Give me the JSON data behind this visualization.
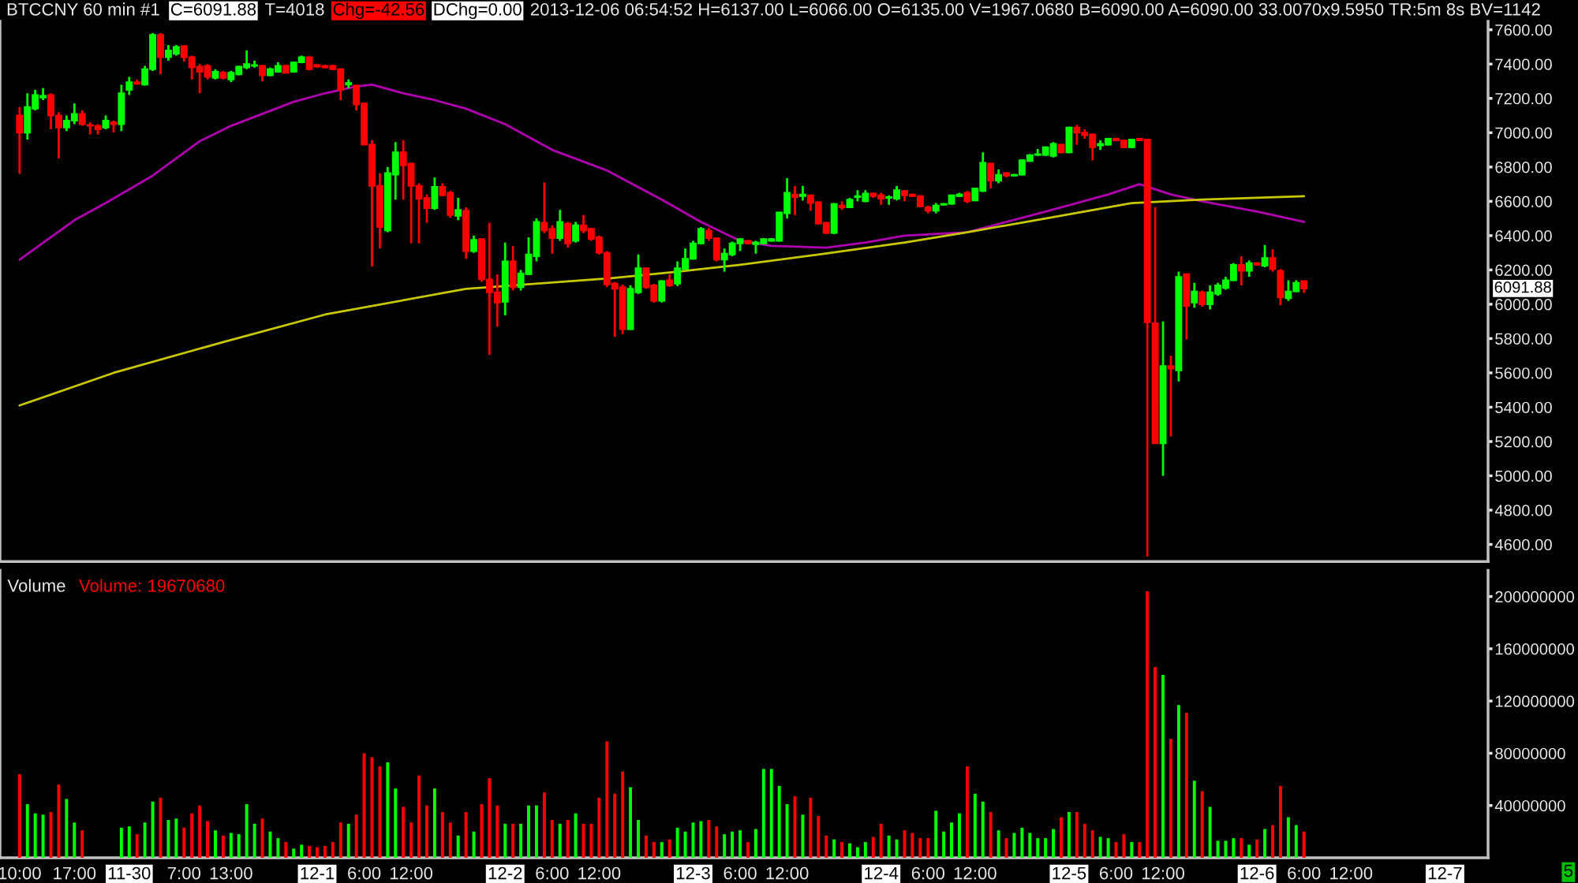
{
  "chart_data": [
    {
      "type": "candlestick",
      "title": "BTCCNY 60 min #1",
      "annotations": [
        "C=6091.88",
        "T=4018",
        "Chg=-42.56",
        "DChg=0.00",
        "2013-12-06 06:54:52 H=6137.00 L=6066.00 O=6135.00 V=1967.0680 B=6090.00 A=6090.00 33.0070x9.5950 TR:5m 8s BV=1142",
        "6091.88"
      ],
      "x": [
        "2013-11-29T10:00",
        "2013-11-29T11:00",
        "2013-11-29T12:00",
        "2013-11-29T13:00",
        "2013-11-29T14:00",
        "2013-11-29T15:00",
        "2013-11-29T16:00",
        "2013-11-29T17:00",
        "2013-11-29T18:00",
        "2013-11-29T19:00",
        "2013-11-29T20:00",
        "2013-11-29T21:00",
        "2013-11-29T22:00",
        "2013-11-29T23:00",
        "2013-11-30T00:00",
        "2013-11-30T01:00",
        "2013-11-30T02:00",
        "2013-11-30T03:00",
        "2013-11-30T04:00",
        "2013-11-30T05:00",
        "2013-11-30T06:00",
        "2013-11-30T07:00",
        "2013-11-30T08:00",
        "2013-11-30T09:00",
        "2013-11-30T10:00",
        "2013-11-30T11:00",
        "2013-11-30T12:00",
        "2013-11-30T13:00",
        "2013-11-30T14:00",
        "2013-11-30T15:00",
        "2013-11-30T16:00",
        "2013-11-30T17:00",
        "2013-11-30T18:00",
        "2013-11-30T19:00",
        "2013-11-30T20:00",
        "2013-11-30T21:00",
        "2013-11-30T22:00",
        "2013-11-30T23:00",
        "2013-12-01T00:00",
        "2013-12-01T01:00",
        "2013-12-01T02:00",
        "2013-12-01T03:00",
        "2013-12-01T04:00",
        "2013-12-01T05:00",
        "2013-12-01T06:00",
        "2013-12-01T07:00",
        "2013-12-01T08:00",
        "2013-12-01T09:00",
        "2013-12-01T10:00",
        "2013-12-01T11:00",
        "2013-12-01T12:00",
        "2013-12-01T13:00",
        "2013-12-01T14:00",
        "2013-12-01T15:00",
        "2013-12-01T16:00",
        "2013-12-01T17:00",
        "2013-12-01T18:00",
        "2013-12-01T19:00",
        "2013-12-01T20:00",
        "2013-12-01T21:00",
        "2013-12-01T22:00",
        "2013-12-01T23:00",
        "2013-12-02T00:00",
        "2013-12-02T01:00",
        "2013-12-02T02:00",
        "2013-12-02T03:00",
        "2013-12-02T04:00",
        "2013-12-02T05:00",
        "2013-12-02T06:00",
        "2013-12-02T07:00",
        "2013-12-02T08:00",
        "2013-12-02T09:00",
        "2013-12-02T10:00",
        "2013-12-02T11:00",
        "2013-12-02T12:00",
        "2013-12-02T13:00",
        "2013-12-02T14:00",
        "2013-12-02T15:00",
        "2013-12-02T16:00",
        "2013-12-02T17:00",
        "2013-12-02T18:00",
        "2013-12-02T19:00",
        "2013-12-02T20:00",
        "2013-12-02T21:00",
        "2013-12-02T22:00",
        "2013-12-02T23:00",
        "2013-12-03T00:00",
        "2013-12-03T01:00",
        "2013-12-03T02:00",
        "2013-12-03T03:00",
        "2013-12-03T04:00",
        "2013-12-03T05:00",
        "2013-12-03T06:00",
        "2013-12-03T07:00",
        "2013-12-03T08:00",
        "2013-12-03T09:00",
        "2013-12-03T10:00",
        "2013-12-03T11:00",
        "2013-12-03T12:00",
        "2013-12-03T13:00",
        "2013-12-03T14:00",
        "2013-12-03T15:00",
        "2013-12-03T16:00",
        "2013-12-03T17:00",
        "2013-12-03T18:00",
        "2013-12-03T19:00",
        "2013-12-03T20:00",
        "2013-12-03T21:00",
        "2013-12-03T22:00",
        "2013-12-03T23:00",
        "2013-12-04T00:00",
        "2013-12-04T01:00",
        "2013-12-04T02:00",
        "2013-12-04T03:00",
        "2013-12-04T04:00",
        "2013-12-04T05:00",
        "2013-12-04T06:00",
        "2013-12-04T07:00",
        "2013-12-04T08:00",
        "2013-12-04T09:00",
        "2013-12-04T10:00",
        "2013-12-04T11:00",
        "2013-12-04T12:00",
        "2013-12-04T13:00",
        "2013-12-04T14:00",
        "2013-12-04T15:00",
        "2013-12-04T16:00",
        "2013-12-04T17:00",
        "2013-12-04T18:00",
        "2013-12-04T19:00",
        "2013-12-04T20:00",
        "2013-12-04T21:00",
        "2013-12-04T22:00",
        "2013-12-04T23:00",
        "2013-12-05T00:00",
        "2013-12-05T01:00",
        "2013-12-05T02:00",
        "2013-12-05T03:00",
        "2013-12-05T04:00",
        "2013-12-05T05:00",
        "2013-12-05T06:00",
        "2013-12-05T07:00",
        "2013-12-05T08:00",
        "2013-12-05T09:00",
        "2013-12-05T10:00",
        "2013-12-05T11:00",
        "2013-12-05T12:00",
        "2013-12-05T13:00",
        "2013-12-05T14:00",
        "2013-12-05T15:00",
        "2013-12-05T16:00",
        "2013-12-05T17:00",
        "2013-12-05T18:00",
        "2013-12-05T19:00",
        "2013-12-05T20:00",
        "2013-12-05T21:00",
        "2013-12-05T22:00",
        "2013-12-05T23:00",
        "2013-12-06T00:00",
        "2013-12-06T01:00",
        "2013-12-06T02:00",
        "2013-12-06T03:00",
        "2013-12-06T04:00",
        "2013-12-06T05:00",
        "2013-12-06T06:00"
      ],
      "ohlc": [
        [
          7100,
          7150,
          6760,
          7000
        ],
        [
          7000,
          7230,
          6960,
          7150
        ],
        [
          7140,
          7250,
          7130,
          7220
        ],
        [
          7205,
          7260,
          7190,
          7215
        ],
        [
          7220,
          7230,
          7020,
          7100
        ],
        [
          7100,
          7120,
          6850,
          7030
        ],
        [
          7030,
          7100,
          7010,
          7070
        ],
        [
          7070,
          7170,
          7050,
          7110
        ],
        [
          7110,
          7130,
          7040,
          7050
        ],
        [
          7045,
          7060,
          6990,
          7040
        ],
        [
          7040,
          7050,
          6990,
          7020
        ],
        [
          7030,
          7100,
          7020,
          7070
        ],
        [
          7060,
          7070,
          7000,
          7050
        ],
        [
          7050,
          7280,
          7010,
          7230
        ],
        [
          7250,
          7325,
          7220,
          7295
        ],
        [
          7295,
          7310,
          7280,
          7285
        ],
        [
          7280,
          7390,
          7275,
          7370
        ],
        [
          7370,
          7580,
          7360,
          7570
        ],
        [
          7570,
          7580,
          7340,
          7440
        ],
        [
          7440,
          7510,
          7420,
          7480
        ],
        [
          7460,
          7510,
          7450,
          7500
        ],
        [
          7505,
          7510,
          7415,
          7440
        ],
        [
          7440,
          7450,
          7310,
          7380
        ],
        [
          7385,
          7400,
          7230,
          7355
        ],
        [
          7390,
          7400,
          7310,
          7325
        ],
        [
          7320,
          7370,
          7310,
          7355
        ],
        [
          7350,
          7360,
          7310,
          7320
        ],
        [
          7310,
          7360,
          7295,
          7350
        ],
        [
          7340,
          7390,
          7335,
          7385
        ],
        [
          7380,
          7480,
          7370,
          7400
        ],
        [
          7390,
          7420,
          7380,
          7395
        ],
        [
          7390,
          7395,
          7300,
          7335
        ],
        [
          7335,
          7380,
          7330,
          7370
        ],
        [
          7355,
          7410,
          7350,
          7390
        ],
        [
          7390,
          7395,
          7345,
          7350
        ],
        [
          7355,
          7415,
          7350,
          7410
        ],
        [
          7410,
          7450,
          7405,
          7440
        ],
        [
          7440,
          7445,
          7365,
          7370
        ],
        [
          7395,
          7400,
          7380,
          7385
        ],
        [
          7390,
          7395,
          7375,
          7380
        ],
        [
          7390,
          7395,
          7365,
          7370
        ],
        [
          7370,
          7375,
          7190,
          7250
        ],
        [
          7280,
          7310,
          7260,
          7290
        ],
        [
          7275,
          7280,
          7130,
          7165
        ],
        [
          7170,
          7175,
          6930,
          6930
        ],
        [
          6930,
          6955,
          6220,
          6690
        ],
        [
          6690,
          6765,
          6325,
          6450
        ],
        [
          6430,
          6800,
          6420,
          6765
        ],
        [
          6755,
          6945,
          6610,
          6885
        ],
        [
          6885,
          6955,
          6610,
          6810
        ],
        [
          6820,
          6825,
          6355,
          6690
        ],
        [
          6690,
          6705,
          6355,
          6615
        ],
        [
          6620,
          6640,
          6475,
          6560
        ],
        [
          6560,
          6740,
          6550,
          6685
        ],
        [
          6685,
          6705,
          6630,
          6635
        ],
        [
          6650,
          6660,
          6505,
          6520
        ],
        [
          6515,
          6620,
          6490,
          6550
        ],
        [
          6545,
          6565,
          6265,
          6310
        ],
        [
          6310,
          6400,
          6300,
          6375
        ],
        [
          6380,
          6385,
          6130,
          6145
        ],
        [
          6145,
          6475,
          5705,
          6070
        ],
        [
          6070,
          6175,
          5870,
          6010
        ],
        [
          6015,
          6360,
          5935,
          6250
        ],
        [
          6250,
          6340,
          6080,
          6100
        ],
        [
          6100,
          6200,
          6080,
          6180
        ],
        [
          6175,
          6390,
          6170,
          6290
        ],
        [
          6280,
          6500,
          6250,
          6480
        ],
        [
          6475,
          6710,
          6415,
          6430
        ],
        [
          6440,
          6460,
          6295,
          6385
        ],
        [
          6385,
          6550,
          6370,
          6480
        ],
        [
          6470,
          6480,
          6330,
          6355
        ],
        [
          6370,
          6480,
          6360,
          6460
        ],
        [
          6460,
          6520,
          6415,
          6430
        ],
        [
          6440,
          6445,
          6370,
          6380
        ],
        [
          6390,
          6400,
          6290,
          6300
        ],
        [
          6300,
          6310,
          6100,
          6115
        ],
        [
          6120,
          6130,
          5810,
          6090
        ],
        [
          6100,
          6115,
          5825,
          5855
        ],
        [
          5855,
          6110,
          5850,
          6090
        ],
        [
          6070,
          6290,
          6060,
          6210
        ],
        [
          6210,
          6215,
          6090,
          6100
        ],
        [
          6110,
          6120,
          6010,
          6020
        ],
        [
          6020,
          6140,
          6010,
          6135
        ],
        [
          6140,
          6175,
          6100,
          6110
        ],
        [
          6120,
          6250,
          6105,
          6210
        ],
        [
          6205,
          6325,
          6200,
          6265
        ],
        [
          6265,
          6370,
          6260,
          6355
        ],
        [
          6355,
          6450,
          6350,
          6440
        ],
        [
          6430,
          6445,
          6370,
          6385
        ],
        [
          6385,
          6390,
          6250,
          6260
        ],
        [
          6260,
          6325,
          6190,
          6295
        ],
        [
          6290,
          6365,
          6280,
          6355
        ],
        [
          6355,
          6385,
          6310,
          6380
        ],
        [
          6370,
          6375,
          6350,
          6355
        ],
        [
          6350,
          6370,
          6295,
          6360
        ],
        [
          6355,
          6385,
          6350,
          6380
        ],
        [
          6370,
          6385,
          6365,
          6380
        ],
        [
          6370,
          6540,
          6365,
          6535
        ],
        [
          6530,
          6735,
          6500,
          6650
        ],
        [
          6640,
          6690,
          6520,
          6625
        ],
        [
          6630,
          6690,
          6605,
          6640
        ],
        [
          6635,
          6640,
          6545,
          6590
        ],
        [
          6595,
          6600,
          6465,
          6470
        ],
        [
          6475,
          6480,
          6410,
          6415
        ],
        [
          6415,
          6590,
          6410,
          6585
        ],
        [
          6575,
          6600,
          6550,
          6565
        ],
        [
          6565,
          6620,
          6560,
          6610
        ],
        [
          6625,
          6665,
          6600,
          6630
        ],
        [
          6600,
          6665,
          6595,
          6645
        ],
        [
          6645,
          6650,
          6620,
          6630
        ],
        [
          6635,
          6650,
          6580,
          6615
        ],
        [
          6620,
          6635,
          6580,
          6625
        ],
        [
          6615,
          6690,
          6605,
          6665
        ],
        [
          6660,
          6665,
          6600,
          6635
        ],
        [
          6640,
          6645,
          6625,
          6630
        ],
        [
          6630,
          6635,
          6565,
          6570
        ],
        [
          6565,
          6575,
          6530,
          6545
        ],
        [
          6545,
          6590,
          6530,
          6575
        ],
        [
          6580,
          6590,
          6575,
          6585
        ],
        [
          6585,
          6640,
          6580,
          6635
        ],
        [
          6630,
          6650,
          6625,
          6640
        ],
        [
          6650,
          6660,
          6590,
          6600
        ],
        [
          6605,
          6680,
          6600,
          6675
        ],
        [
          6660,
          6885,
          6655,
          6825
        ],
        [
          6820,
          6825,
          6675,
          6720
        ],
        [
          6720,
          6785,
          6705,
          6755
        ],
        [
          6765,
          6770,
          6740,
          6750
        ],
        [
          6750,
          6760,
          6745,
          6755
        ],
        [
          6755,
          6845,
          6750,
          6840
        ],
        [
          6835,
          6875,
          6830,
          6870
        ],
        [
          6870,
          6905,
          6865,
          6875
        ],
        [
          6870,
          6920,
          6865,
          6915
        ],
        [
          6865,
          6945,
          6855,
          6935
        ],
        [
          6930,
          6935,
          6880,
          6885
        ],
        [
          6885,
          7035,
          6880,
          7030
        ],
        [
          7030,
          7045,
          6930,
          7000
        ],
        [
          7000,
          7020,
          6965,
          6985
        ],
        [
          6990,
          6995,
          6840,
          6915
        ],
        [
          6925,
          6955,
          6900,
          6935
        ],
        [
          6930,
          6970,
          6925,
          6965
        ],
        [
          6965,
          6970,
          6950,
          6955
        ],
        [
          6955,
          6960,
          6910,
          6915
        ],
        [
          6915,
          6965,
          6910,
          6960
        ],
        [
          6965,
          6970,
          6950,
          6955
        ],
        [
          6960,
          6965,
          4530,
          5895
        ],
        [
          5890,
          6565,
          5190,
          5190
        ],
        [
          5190,
          5900,
          5000,
          5640
        ],
        [
          5640,
          5700,
          5230,
          5625
        ],
        [
          5615,
          6190,
          5550,
          6160
        ],
        [
          6175,
          6175,
          5795,
          5990
        ],
        [
          6010,
          6125,
          5980,
          6075
        ],
        [
          6070,
          6080,
          5985,
          6000
        ],
        [
          6000,
          6110,
          5970,
          6070
        ],
        [
          6060,
          6125,
          6050,
          6110
        ],
        [
          6095,
          6160,
          6085,
          6140
        ],
        [
          6140,
          6240,
          6135,
          6230
        ],
        [
          6230,
          6280,
          6110,
          6195
        ],
        [
          6195,
          6255,
          6160,
          6240
        ],
        [
          6240,
          6245,
          6225,
          6230
        ],
        [
          6225,
          6345,
          6215,
          6270
        ],
        [
          6270,
          6320,
          6190,
          6205
        ],
        [
          6195,
          6205,
          5995,
          6040
        ],
        [
          6035,
          6140,
          6020,
          6075
        ],
        [
          6075,
          6140,
          6070,
          6125
        ],
        [
          6135,
          6137,
          6066,
          6091.88
        ]
      ],
      "colors": [
        "#ff0000",
        "#00ff00",
        "#00ff00",
        "#00ff00",
        "#ff0000",
        "#ff0000",
        "#00ff00",
        "#00ff00",
        "#ff0000",
        "#ff0000",
        "#ff0000",
        "#00ff00",
        "#ff0000",
        "#00ff00",
        "#00ff00",
        "#ff0000",
        "#00ff00",
        "#00ff00",
        "#ff0000",
        "#00ff00",
        "#00ff00",
        "#ff0000",
        "#ff0000",
        "#ff0000",
        "#ff0000",
        "#00ff00",
        "#ff0000",
        "#00ff00",
        "#00ff00",
        "#00ff00",
        "#00ff00",
        "#ff0000",
        "#00ff00",
        "#00ff00",
        "#ff0000",
        "#00ff00",
        "#00ff00",
        "#ff0000",
        "#ff0000",
        "#ff0000",
        "#ff0000",
        "#ff0000",
        "#00ff00",
        "#ff0000",
        "#ff0000",
        "#ff0000",
        "#ff0000",
        "#00ff00",
        "#00ff00",
        "#ff0000",
        "#ff0000",
        "#ff0000",
        "#ff0000",
        "#00ff00",
        "#ff0000",
        "#ff0000",
        "#00ff00",
        "#ff0000",
        "#00ff00",
        "#ff0000",
        "#ff0000",
        "#ff0000",
        "#00ff00",
        "#ff0000",
        "#00ff00",
        "#00ff00",
        "#00ff00",
        "#ff0000",
        "#ff0000",
        "#00ff00",
        "#ff0000",
        "#00ff00",
        "#ff0000",
        "#ff0000",
        "#ff0000",
        "#ff0000",
        "#ff0000",
        "#ff0000",
        "#00ff00",
        "#00ff00",
        "#ff0000",
        "#ff0000",
        "#00ff00",
        "#ff0000",
        "#00ff00",
        "#00ff00",
        "#00ff00",
        "#00ff00",
        "#ff0000",
        "#ff0000",
        "#00ff00",
        "#00ff00",
        "#00ff00",
        "#ff0000",
        "#00ff00",
        "#00ff00",
        "#00ff00",
        "#00ff00",
        "#00ff00",
        "#ff0000",
        "#00ff00",
        "#ff0000",
        "#ff0000",
        "#ff0000",
        "#00ff00",
        "#ff0000",
        "#00ff00",
        "#00ff00",
        "#00ff00",
        "#ff0000",
        "#ff0000",
        "#00ff00",
        "#00ff00",
        "#ff0000",
        "#ff0000",
        "#ff0000",
        "#ff0000",
        "#00ff00",
        "#00ff00",
        "#00ff00",
        "#00ff00",
        "#ff0000",
        "#00ff00",
        "#00ff00",
        "#ff0000",
        "#00ff00",
        "#ff0000",
        "#00ff00",
        "#00ff00",
        "#00ff00",
        "#00ff00",
        "#00ff00",
        "#00ff00",
        "#ff0000",
        "#00ff00",
        "#ff0000",
        "#ff0000",
        "#ff0000",
        "#00ff00",
        "#00ff00",
        "#ff0000",
        "#ff0000",
        "#00ff00",
        "#ff0000",
        "#ff0000",
        "#ff0000",
        "#00ff00",
        "#ff0000",
        "#00ff00",
        "#ff0000",
        "#00ff00",
        "#ff0000",
        "#00ff00",
        "#00ff00",
        "#00ff00",
        "#00ff00",
        "#ff0000",
        "#00ff00",
        "#ff0000",
        "#00ff00",
        "#ff0000",
        "#ff0000",
        "#00ff00",
        "#00ff00",
        "#ff0000"
      ],
      "series": [
        {
          "type": "line",
          "color": "#b000b0",
          "x": [
            "2013-11-29T10:00",
            "2013-11-29T17:00",
            "2013-11-29T21:00",
            "2013-11-30T03:00",
            "2013-11-30T09:00",
            "2013-11-30T13:00",
            "2013-11-30T17:00",
            "2013-11-30T21:00",
            "2013-12-01T01:00",
            "2013-12-01T05:00",
            "2013-12-01T07:00",
            "2013-12-01T11:00",
            "2013-12-01T15:00",
            "2013-12-01T19:00",
            "2013-12-02T00:00",
            "2013-12-02T06:00",
            "2013-12-02T13:00",
            "2013-12-02T20:00",
            "2013-12-03T01:00",
            "2013-12-03T06:00",
            "2013-12-03T10:00",
            "2013-12-03T17:00",
            "2013-12-03T22:00",
            "2013-12-04T03:00",
            "2013-12-04T11:00",
            "2013-12-04T21:00",
            "2013-12-05T05:00",
            "2013-12-05T09:00",
            "2013-12-05T13:00",
            "2013-12-05T17:00",
            "2013-12-06T00:00",
            "2013-12-06T06:00"
          ],
          "values": [
            6260,
            6490,
            6590,
            6750,
            6950,
            7040,
            7110,
            7180,
            7230,
            7270,
            7280,
            7230,
            7190,
            7140,
            7050,
            6900,
            6780,
            6610,
            6480,
            6370,
            6340,
            6330,
            6360,
            6400,
            6420,
            6540,
            6640,
            6700,
            6640,
            6600,
            6540,
            6480
          ]
        },
        {
          "type": "line",
          "color": "#c8c800",
          "x": [
            "2013-11-29T10:00",
            "2013-11-29T22:00",
            "2013-11-30T12:00",
            "2013-12-01T01:00",
            "2013-12-01T19:00",
            "2013-12-02T13:00",
            "2013-12-02T22:00",
            "2013-12-03T06:00",
            "2013-12-03T16:00",
            "2013-12-04T03:00",
            "2013-12-04T11:00",
            "2013-12-04T21:00",
            "2013-12-05T08:00",
            "2013-12-05T17:00",
            "2013-12-06T06:00"
          ],
          "values": [
            5410,
            5600,
            5780,
            5940,
            6090,
            6150,
            6190,
            6230,
            6290,
            6360,
            6420,
            6500,
            6590,
            6610,
            6630
          ]
        }
      ],
      "xlim": [
        "2013-11-29T07:30",
        "2013-12-07T05:30"
      ],
      "ylim": [
        4500,
        7650
      ],
      "yticks": [
        {
          "value": 4600,
          "label": "4600.00"
        },
        {
          "value": 4800,
          "label": "4800.00"
        },
        {
          "value": 5000,
          "label": "5000.00"
        },
        {
          "value": 5200,
          "label": "5200.00"
        },
        {
          "value": 5400,
          "label": "5400.00"
        },
        {
          "value": 5600,
          "label": "5600.00"
        },
        {
          "value": 5800,
          "label": "5800.00"
        },
        {
          "value": 6000,
          "label": "6000.00"
        },
        {
          "value": 6200,
          "label": "6200.00"
        },
        {
          "value": 6400,
          "label": "6400.00"
        },
        {
          "value": 6600,
          "label": "6600.00"
        },
        {
          "value": 6800,
          "label": "6800.00"
        },
        {
          "value": 7000,
          "label": "7000.00"
        },
        {
          "value": 7200,
          "label": "7200.00"
        },
        {
          "value": 7400,
          "label": "7400.00"
        },
        {
          "value": 7600,
          "label": "7600.00"
        }
      ],
      "tick_labels": "y"
    },
    {
      "type": "bar",
      "title": "Volume",
      "annotations": [
        "Volume: 19670680",
        "5"
      ],
      "x": [
        "2013-11-29T10:00",
        "2013-11-29T11:00",
        "2013-11-29T12:00",
        "2013-11-29T13:00",
        "2013-11-29T14:00",
        "2013-11-29T15:00",
        "2013-11-29T16:00",
        "2013-11-29T17:00",
        "2013-11-29T18:00",
        "2013-11-29T19:00",
        "2013-11-29T20:00",
        "2013-11-29T21:00",
        "2013-11-29T22:00",
        "2013-11-29T23:00",
        "2013-11-30T00:00",
        "2013-11-30T01:00",
        "2013-11-30T02:00",
        "2013-11-30T03:00",
        "2013-11-30T04:00",
        "2013-11-30T05:00",
        "2013-11-30T06:00",
        "2013-11-30T07:00",
        "2013-11-30T08:00",
        "2013-11-30T09:00",
        "2013-11-30T10:00",
        "2013-11-30T11:00",
        "2013-11-30T12:00",
        "2013-11-30T13:00",
        "2013-11-30T14:00",
        "2013-11-30T15:00",
        "2013-11-30T16:00",
        "2013-11-30T17:00",
        "2013-11-30T18:00",
        "2013-11-30T19:00",
        "2013-11-30T20:00",
        "2013-11-30T21:00",
        "2013-11-30T22:00",
        "2013-11-30T23:00",
        "2013-12-01T00:00",
        "2013-12-01T01:00",
        "2013-12-01T02:00",
        "2013-12-01T03:00",
        "2013-12-01T04:00",
        "2013-12-01T05:00",
        "2013-12-01T06:00",
        "2013-12-01T07:00",
        "2013-12-01T08:00",
        "2013-12-01T09:00",
        "2013-12-01T10:00",
        "2013-12-01T11:00",
        "2013-12-01T12:00",
        "2013-12-01T13:00",
        "2013-12-01T14:00",
        "2013-12-01T15:00",
        "2013-12-01T16:00",
        "2013-12-01T17:00",
        "2013-12-01T18:00",
        "2013-12-01T19:00",
        "2013-12-01T20:00",
        "2013-12-01T21:00",
        "2013-12-01T22:00",
        "2013-12-01T23:00",
        "2013-12-02T00:00",
        "2013-12-02T01:00",
        "2013-12-02T02:00",
        "2013-12-02T03:00",
        "2013-12-02T04:00",
        "2013-12-02T05:00",
        "2013-12-02T06:00",
        "2013-12-02T07:00",
        "2013-12-02T08:00",
        "2013-12-02T09:00",
        "2013-12-02T10:00",
        "2013-12-02T11:00",
        "2013-12-02T12:00",
        "2013-12-02T13:00",
        "2013-12-02T14:00",
        "2013-12-02T15:00",
        "2013-12-02T16:00",
        "2013-12-02T17:00",
        "2013-12-02T18:00",
        "2013-12-02T19:00",
        "2013-12-02T20:00",
        "2013-12-02T21:00",
        "2013-12-02T22:00",
        "2013-12-02T23:00",
        "2013-12-03T00:00",
        "2013-12-03T01:00",
        "2013-12-03T02:00",
        "2013-12-03T03:00",
        "2013-12-03T04:00",
        "2013-12-03T05:00",
        "2013-12-03T06:00",
        "2013-12-03T07:00",
        "2013-12-03T08:00",
        "2013-12-03T09:00",
        "2013-12-03T10:00",
        "2013-12-03T11:00",
        "2013-12-03T12:00",
        "2013-12-03T13:00",
        "2013-12-03T14:00",
        "2013-12-03T15:00",
        "2013-12-03T16:00",
        "2013-12-03T17:00",
        "2013-12-03T18:00",
        "2013-12-03T19:00",
        "2013-12-03T20:00",
        "2013-12-03T21:00",
        "2013-12-03T22:00",
        "2013-12-03T23:00",
        "2013-12-04T00:00",
        "2013-12-04T01:00",
        "2013-12-04T02:00",
        "2013-12-04T03:00",
        "2013-12-04T04:00",
        "2013-12-04T05:00",
        "2013-12-04T06:00",
        "2013-12-04T07:00",
        "2013-12-04T08:00",
        "2013-12-04T09:00",
        "2013-12-04T10:00",
        "2013-12-04T11:00",
        "2013-12-04T12:00",
        "2013-12-04T13:00",
        "2013-12-04T14:00",
        "2013-12-04T15:00",
        "2013-12-04T16:00",
        "2013-12-04T17:00",
        "2013-12-04T18:00",
        "2013-12-04T19:00",
        "2013-12-04T20:00",
        "2013-12-04T21:00",
        "2013-12-04T22:00",
        "2013-12-04T23:00",
        "2013-12-05T00:00",
        "2013-12-05T01:00",
        "2013-12-05T02:00",
        "2013-12-05T03:00",
        "2013-12-05T04:00",
        "2013-12-05T05:00",
        "2013-12-05T06:00",
        "2013-12-05T07:00",
        "2013-12-05T08:00",
        "2013-12-05T09:00",
        "2013-12-05T10:00",
        "2013-12-05T11:00",
        "2013-12-05T12:00",
        "2013-12-05T13:00",
        "2013-12-05T14:00",
        "2013-12-05T15:00",
        "2013-12-05T16:00",
        "2013-12-05T17:00",
        "2013-12-05T18:00",
        "2013-12-05T19:00",
        "2013-12-05T20:00",
        "2013-12-05T21:00",
        "2013-12-05T22:00",
        "2013-12-05T23:00",
        "2013-12-06T00:00",
        "2013-12-06T01:00",
        "2013-12-06T02:00",
        "2013-12-06T03:00",
        "2013-12-06T04:00",
        "2013-12-06T05:00",
        "2013-12-06T06:00"
      ],
      "values": [
        64000000.0,
        41000000.0,
        34000000.0,
        33000000.0,
        35000000.0,
        56000000.0,
        45000000.0,
        27000000.0,
        21000000.0,
        0,
        0,
        0,
        0,
        23000000.0,
        24000000.0,
        18000000.0,
        27000000.0,
        43000000.0,
        46000000.0,
        29000000.0,
        30000000.0,
        23000000.0,
        34000000.0,
        40000000.0,
        28000000.0,
        21000000.0,
        17000000.0,
        19000000.0,
        18000000.0,
        41000000.0,
        26000000.0,
        30000000.0,
        20000000.0,
        15000000.0,
        12000000.0,
        7000000.0,
        10000000.0,
        9000000.0,
        8000000.0,
        9000000.0,
        12000000.0,
        27000000.0,
        26000000.0,
        33000000.0,
        80000000.0,
        77000000.0,
        70000000.0,
        73000000.0,
        53000000.0,
        39000000.0,
        27000000.0,
        63000000.0,
        40000000.0,
        53000000.0,
        35000000.0,
        27000000.0,
        17000000.0,
        35000000.0,
        20000000.0,
        41000000.0,
        61000000.0,
        40000000.0,
        26000000.0,
        26000000.0,
        26000000.0,
        40000000.0,
        40000000.0,
        50000000.0,
        29000000.0,
        26000000.0,
        29000000.0,
        34000000.0,
        26000000.0,
        26000000.0,
        46000000.0,
        89000000.0,
        49000000.0,
        66000000.0,
        54000000.0,
        29000000.0,
        17000000.0,
        12000000.0,
        12000000.0,
        14000000.0,
        23000000.0,
        20000000.0,
        27000000.0,
        28000000.0,
        29000000.0,
        24000000.0,
        18000000.0,
        20000000.0,
        21000000.0,
        12000000.0,
        22000000.0,
        68000000.0,
        68000000.0,
        55000000.0,
        41000000.0,
        47000000.0,
        33000000.0,
        46000000.0,
        32000000.0,
        17000000.0,
        14000000.0,
        12000000.0,
        11000000.0,
        8000000.0,
        12000000.0,
        16000000.0,
        26000000.0,
        17000000.0,
        14000000.0,
        21000000.0,
        19000000.0,
        15000000.0,
        15000000.0,
        36000000.0,
        20000000.0,
        27000000.0,
        34000000.0,
        70000000.0,
        49000000.0,
        43000000.0,
        35000000.0,
        21000000.0,
        15000000.0,
        19000000.0,
        23000000.0,
        19000000.0,
        15000000.0,
        15000000.0,
        22000000.0,
        31000000.0,
        35000000.0,
        35000000.0,
        26000000.0,
        21000000.0,
        16000000.0,
        15000000.0,
        12000000.0,
        18000000.0,
        12000000.0,
        12000000.0,
        204000000.0,
        146000000.0,
        140000000.0,
        91000000.0,
        117000000.0,
        111000000.0,
        59000000.0,
        51000000.0,
        39000000.0,
        13000000.0,
        13000000.0,
        15000000.0,
        15000000.0,
        10000000.0,
        14000000.0,
        22000000.0,
        25000000.0,
        55000000.0,
        31000000.0,
        25000000.0,
        20000000.0
      ],
      "colors": [
        "#ff0000",
        "#00ff00",
        "#00ff00",
        "#00ff00",
        "#ff0000",
        "#ff0000",
        "#00ff00",
        "#00ff00",
        "#ff0000",
        "#ff0000",
        "#ff0000",
        "#00ff00",
        "#ff0000",
        "#00ff00",
        "#00ff00",
        "#ff0000",
        "#00ff00",
        "#00ff00",
        "#ff0000",
        "#00ff00",
        "#00ff00",
        "#ff0000",
        "#ff0000",
        "#ff0000",
        "#ff0000",
        "#00ff00",
        "#ff0000",
        "#00ff00",
        "#00ff00",
        "#00ff00",
        "#00ff00",
        "#ff0000",
        "#00ff00",
        "#00ff00",
        "#ff0000",
        "#00ff00",
        "#00ff00",
        "#ff0000",
        "#ff0000",
        "#ff0000",
        "#ff0000",
        "#ff0000",
        "#00ff00",
        "#ff0000",
        "#ff0000",
        "#ff0000",
        "#ff0000",
        "#00ff00",
        "#00ff00",
        "#ff0000",
        "#ff0000",
        "#ff0000",
        "#ff0000",
        "#00ff00",
        "#ff0000",
        "#ff0000",
        "#00ff00",
        "#ff0000",
        "#00ff00",
        "#ff0000",
        "#ff0000",
        "#ff0000",
        "#00ff00",
        "#ff0000",
        "#00ff00",
        "#00ff00",
        "#00ff00",
        "#ff0000",
        "#ff0000",
        "#00ff00",
        "#ff0000",
        "#00ff00",
        "#ff0000",
        "#ff0000",
        "#ff0000",
        "#ff0000",
        "#ff0000",
        "#ff0000",
        "#00ff00",
        "#00ff00",
        "#ff0000",
        "#ff0000",
        "#00ff00",
        "#ff0000",
        "#00ff00",
        "#00ff00",
        "#00ff00",
        "#00ff00",
        "#ff0000",
        "#ff0000",
        "#00ff00",
        "#00ff00",
        "#00ff00",
        "#ff0000",
        "#00ff00",
        "#00ff00",
        "#00ff00",
        "#00ff00",
        "#00ff00",
        "#ff0000",
        "#00ff00",
        "#ff0000",
        "#ff0000",
        "#ff0000",
        "#00ff00",
        "#ff0000",
        "#00ff00",
        "#00ff00",
        "#00ff00",
        "#ff0000",
        "#ff0000",
        "#00ff00",
        "#00ff00",
        "#ff0000",
        "#ff0000",
        "#ff0000",
        "#ff0000",
        "#00ff00",
        "#00ff00",
        "#00ff00",
        "#00ff00",
        "#ff0000",
        "#00ff00",
        "#00ff00",
        "#ff0000",
        "#00ff00",
        "#ff0000",
        "#00ff00",
        "#00ff00",
        "#00ff00",
        "#00ff00",
        "#00ff00",
        "#00ff00",
        "#ff0000",
        "#00ff00",
        "#ff0000",
        "#ff0000",
        "#ff0000",
        "#00ff00",
        "#00ff00",
        "#ff0000",
        "#ff0000",
        "#00ff00",
        "#ff0000",
        "#ff0000",
        "#ff0000",
        "#00ff00",
        "#ff0000",
        "#00ff00",
        "#ff0000",
        "#00ff00",
        "#ff0000",
        "#00ff00",
        "#00ff00",
        "#00ff00",
        "#00ff00",
        "#ff0000",
        "#00ff00",
        "#ff0000",
        "#00ff00",
        "#ff0000",
        "#ff0000",
        "#00ff00",
        "#00ff00",
        "#ff0000"
      ],
      "xlim": [
        "2013-11-29T07:30",
        "2013-12-07T05:30"
      ],
      "xticks": [
        {
          "value": "2013-11-29T10:00",
          "label": "10:00"
        },
        {
          "value": "2013-11-29T17:00",
          "label": "17:00"
        },
        {
          "value": "2013-11-30",
          "label": "11-30"
        },
        {
          "value": "2013-11-30T07:00",
          "label": "7:00"
        },
        {
          "value": "2013-11-30T13:00",
          "label": "13:00"
        },
        {
          "value": "2013-12-01",
          "label": "12-1"
        },
        {
          "value": "2013-12-01T06:00",
          "label": "6:00"
        },
        {
          "value": "2013-12-01T12:00",
          "label": "12:00"
        },
        {
          "value": "2013-12-02",
          "label": "12-2"
        },
        {
          "value": "2013-12-02T06:00",
          "label": "6:00"
        },
        {
          "value": "2013-12-02T12:00",
          "label": "12:00"
        },
        {
          "value": "2013-12-03",
          "label": "12-3"
        },
        {
          "value": "2013-12-03T06:00",
          "label": "6:00"
        },
        {
          "value": "2013-12-03T12:00",
          "label": "12:00"
        },
        {
          "value": "2013-12-04",
          "label": "12-4"
        },
        {
          "value": "2013-12-04T06:00",
          "label": "6:00"
        },
        {
          "value": "2013-12-04T12:00",
          "label": "12:00"
        },
        {
          "value": "2013-12-05",
          "label": "12-5"
        },
        {
          "value": "2013-12-05T06:00",
          "label": "6:00"
        },
        {
          "value": "2013-12-05T12:00",
          "label": "12:00"
        },
        {
          "value": "2013-12-06",
          "label": "12-6"
        },
        {
          "value": "2013-12-06T06:00",
          "label": "6:00"
        },
        {
          "value": "2013-12-06T12:00",
          "label": "12:00"
        },
        {
          "value": "2013-12-07",
          "label": "12-7"
        }
      ],
      "ylim": [
        0,
        220000000.0
      ],
      "yticks": [
        {
          "value": 40000000.0,
          "label": "40000000"
        },
        {
          "value": 80000000.0,
          "label": "80000000"
        },
        {
          "value": 120000000.0,
          "label": "120000000"
        },
        {
          "value": 160000000.0,
          "label": "160000000"
        },
        {
          "value": 200000000.0,
          "label": "200000000"
        }
      ]
    }
  ]
}
